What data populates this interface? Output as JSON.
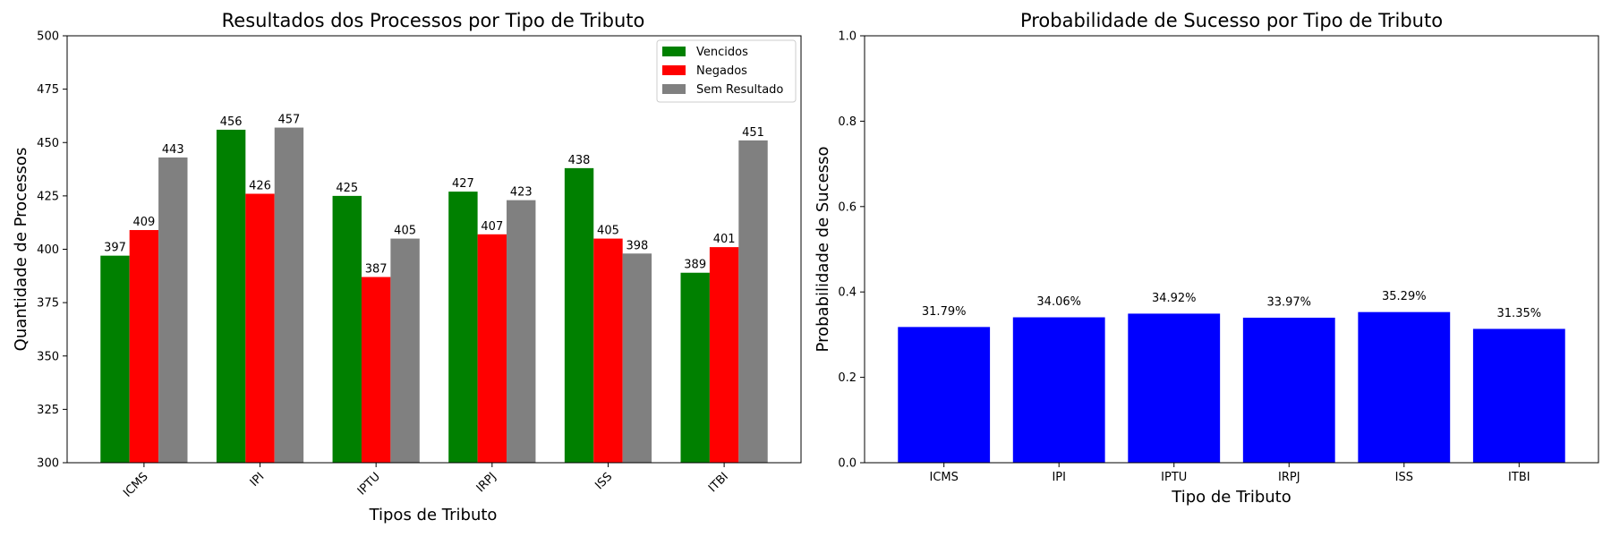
{
  "chart_data": [
    {
      "type": "bar",
      "title": "Resultados dos Processos por Tipo de Tributo",
      "xlabel": "Tipos de Tributo",
      "ylabel": "Quantidade de Processos",
      "categories": [
        "ICMS",
        "IPI",
        "IPTU",
        "IRPJ",
        "ISS",
        "ITBI"
      ],
      "ylim": [
        300,
        500
      ],
      "yticks": [
        "300",
        "325",
        "350",
        "375",
        "400",
        "425",
        "450",
        "475",
        "500"
      ],
      "grid": false,
      "legend": "top-right",
      "series": [
        {
          "name": "Vencidos",
          "color": "#008000",
          "values": [
            397,
            456,
            425,
            427,
            438,
            389
          ]
        },
        {
          "name": "Negados",
          "color": "#ff0000",
          "values": [
            409,
            426,
            387,
            407,
            405,
            401
          ]
        },
        {
          "name": "Sem Resultado",
          "color": "#808080",
          "values": [
            443,
            457,
            405,
            423,
            398,
            451
          ]
        }
      ]
    },
    {
      "type": "bar",
      "title": "Probabilidade de Sucesso por Tipo de Tributo",
      "xlabel": "Tipo de Tributo",
      "ylabel": "Probabilidade de Sucesso",
      "categories": [
        "ICMS",
        "IPI",
        "IPTU",
        "IRPJ",
        "ISS",
        "ITBI"
      ],
      "ylim": [
        0,
        1
      ],
      "yticks": [
        "0.0",
        "0.2",
        "0.4",
        "0.6",
        "0.8",
        "1.0"
      ],
      "grid": false,
      "series": [
        {
          "color": "#0000ff",
          "values": [
            0.3179,
            0.3406,
            0.3492,
            0.3397,
            0.3529,
            0.3135
          ],
          "labels": [
            "31.79%",
            "34.06%",
            "34.92%",
            "33.97%",
            "35.29%",
            "31.35%"
          ]
        }
      ]
    }
  ]
}
